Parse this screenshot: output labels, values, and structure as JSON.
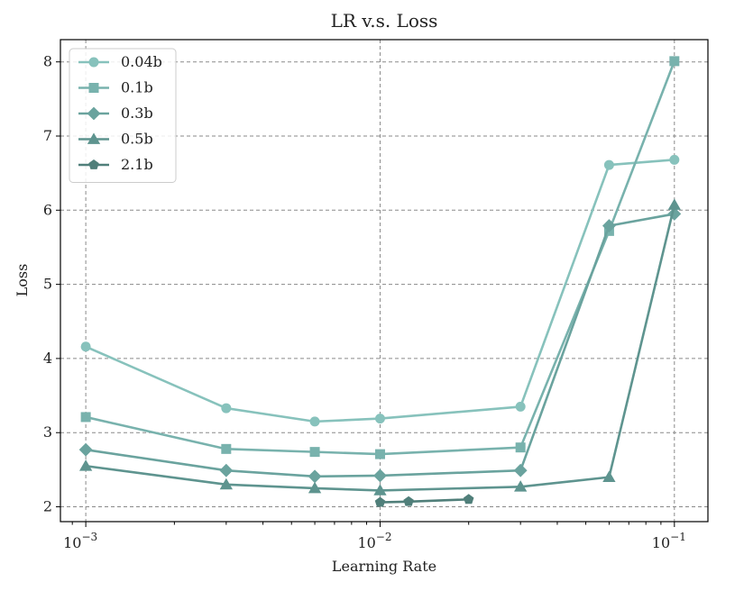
{
  "chart_data": {
    "type": "line",
    "title": "LR v.s. Loss",
    "xlabel": "Learning Rate",
    "ylabel": "Loss",
    "xscale": "log",
    "xlim": [
      0.00082,
      0.13
    ],
    "ylim": [
      1.8,
      8.3
    ],
    "xticks": [
      {
        "value": 0.001,
        "base": "10",
        "exp": "−3"
      },
      {
        "value": 0.01,
        "base": "10",
        "exp": "−2"
      },
      {
        "value": 0.1,
        "base": "10",
        "exp": "−1"
      }
    ],
    "yticks": [
      2,
      3,
      4,
      5,
      6,
      7,
      8
    ],
    "grid": true,
    "legend_position": "top-left",
    "series": [
      {
        "name": "0.04b",
        "marker": "circle",
        "color": "#87c2bc",
        "x": [
          0.001,
          0.003,
          0.006,
          0.01,
          0.03,
          0.06,
          0.1
        ],
        "y": [
          4.16,
          3.33,
          3.15,
          3.19,
          3.35,
          6.61,
          6.68
        ]
      },
      {
        "name": "0.1b",
        "marker": "square",
        "color": "#78b2ad",
        "x": [
          0.001,
          0.003,
          0.006,
          0.01,
          0.03,
          0.06,
          0.1
        ],
        "y": [
          3.21,
          2.78,
          2.74,
          2.71,
          2.8,
          5.72,
          8.01
        ]
      },
      {
        "name": "0.3b",
        "marker": "diamond",
        "color": "#6aa39e",
        "x": [
          0.001,
          0.003,
          0.006,
          0.01,
          0.03,
          0.06,
          0.1
        ],
        "y": [
          2.77,
          2.49,
          2.41,
          2.42,
          2.49,
          5.79,
          5.95
        ]
      },
      {
        "name": "0.5b",
        "marker": "triangle",
        "color": "#5e948f",
        "x": [
          0.001,
          0.003,
          0.006,
          0.01,
          0.03,
          0.06,
          0.1
        ],
        "y": [
          2.55,
          2.3,
          2.25,
          2.22,
          2.27,
          2.4,
          6.07
        ]
      },
      {
        "name": "2.1b",
        "marker": "pentagon",
        "color": "#507f7a",
        "x": [
          0.01,
          0.0125,
          0.02
        ],
        "y": [
          2.06,
          2.07,
          2.1
        ]
      }
    ]
  }
}
